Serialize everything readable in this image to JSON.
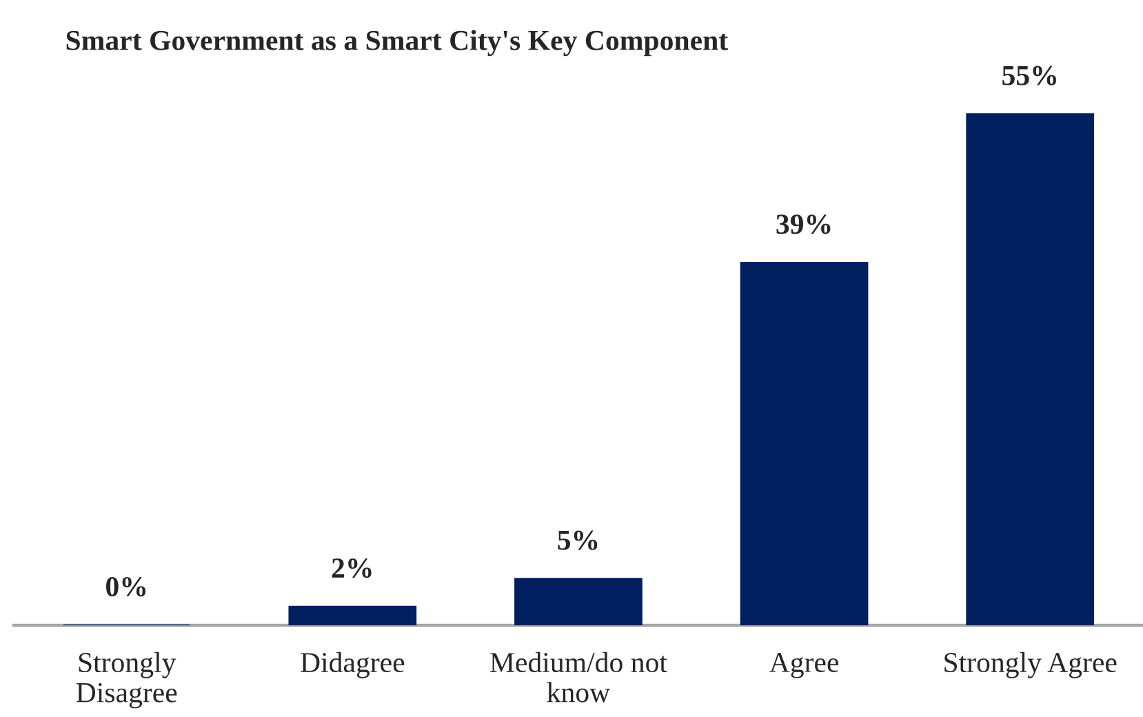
{
  "chart_data": {
    "type": "bar",
    "title": "Smart Government as a Smart City's Key Component",
    "categories": [
      "Strongly Disagree",
      "Didagree",
      "Medium/do not know",
      "Agree",
      "Strongly Agree"
    ],
    "values": [
      0,
      2,
      5,
      39,
      55
    ],
    "value_labels": [
      "0%",
      "2%",
      "5%",
      "39%",
      "55%"
    ],
    "color": "#002060",
    "grid": false,
    "legend": false
  }
}
